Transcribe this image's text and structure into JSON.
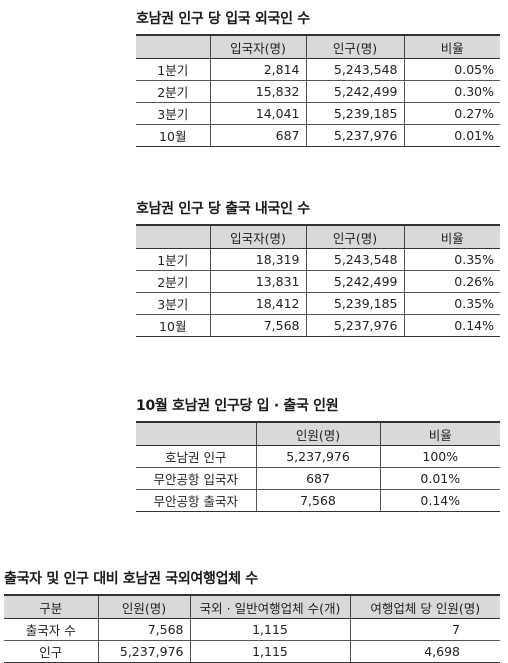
{
  "table1": {
    "title": "호남권 인구 당 입국 외국인 수",
    "headers": [
      "",
      "입국자(명)",
      "인구(명)",
      "비율"
    ],
    "rows": [
      [
        "1분기",
        "2,814",
        "5,243,548",
        "0.05%"
      ],
      [
        "2분기",
        "15,832",
        "5,242,499",
        "0.30%"
      ],
      [
        "3분기",
        "14,041",
        "5,239,185",
        "0.27%"
      ],
      [
        "10월",
        "687",
        "5,237,976",
        "0.01%"
      ]
    ]
  },
  "table2": {
    "title": "호남권 인구 당 출국 내국인 수",
    "headers": [
      "",
      "입국자(명)",
      "인구(명)",
      "비율"
    ],
    "rows": [
      [
        "1분기",
        "18,319",
        "5,243,548",
        "0.35%"
      ],
      [
        "2분기",
        "13,831",
        "5,242,499",
        "0.26%"
      ],
      [
        "3분기",
        "18,412",
        "5,239,185",
        "0.35%"
      ],
      [
        "10월",
        "7,568",
        "5,237,976",
        "0.14%"
      ]
    ]
  },
  "table3": {
    "title": "10월 호남권 인구당 입 · 출국 인원",
    "headers": [
      "",
      "인원(명)",
      "비율"
    ],
    "rows": [
      [
        "호남권 인구",
        "5,237,976",
        "100%"
      ],
      [
        "무안공항 입국자",
        "687",
        "0.01%"
      ],
      [
        "무안공항 출국자",
        "7,568",
        "0.14%"
      ]
    ]
  },
  "table4": {
    "title": "출국자 및 인구 대비 호남권 국외여행업체 수",
    "headers": [
      "구분",
      "인원(명)",
      "국외 · 일반여행업체 수(개)",
      "여행업체 당 인원(명)"
    ],
    "rows": [
      [
        "출국자 수",
        "7,568",
        "1,115",
        "7"
      ],
      [
        "인구",
        "5,237,976",
        "1,115",
        "4,698"
      ]
    ]
  }
}
